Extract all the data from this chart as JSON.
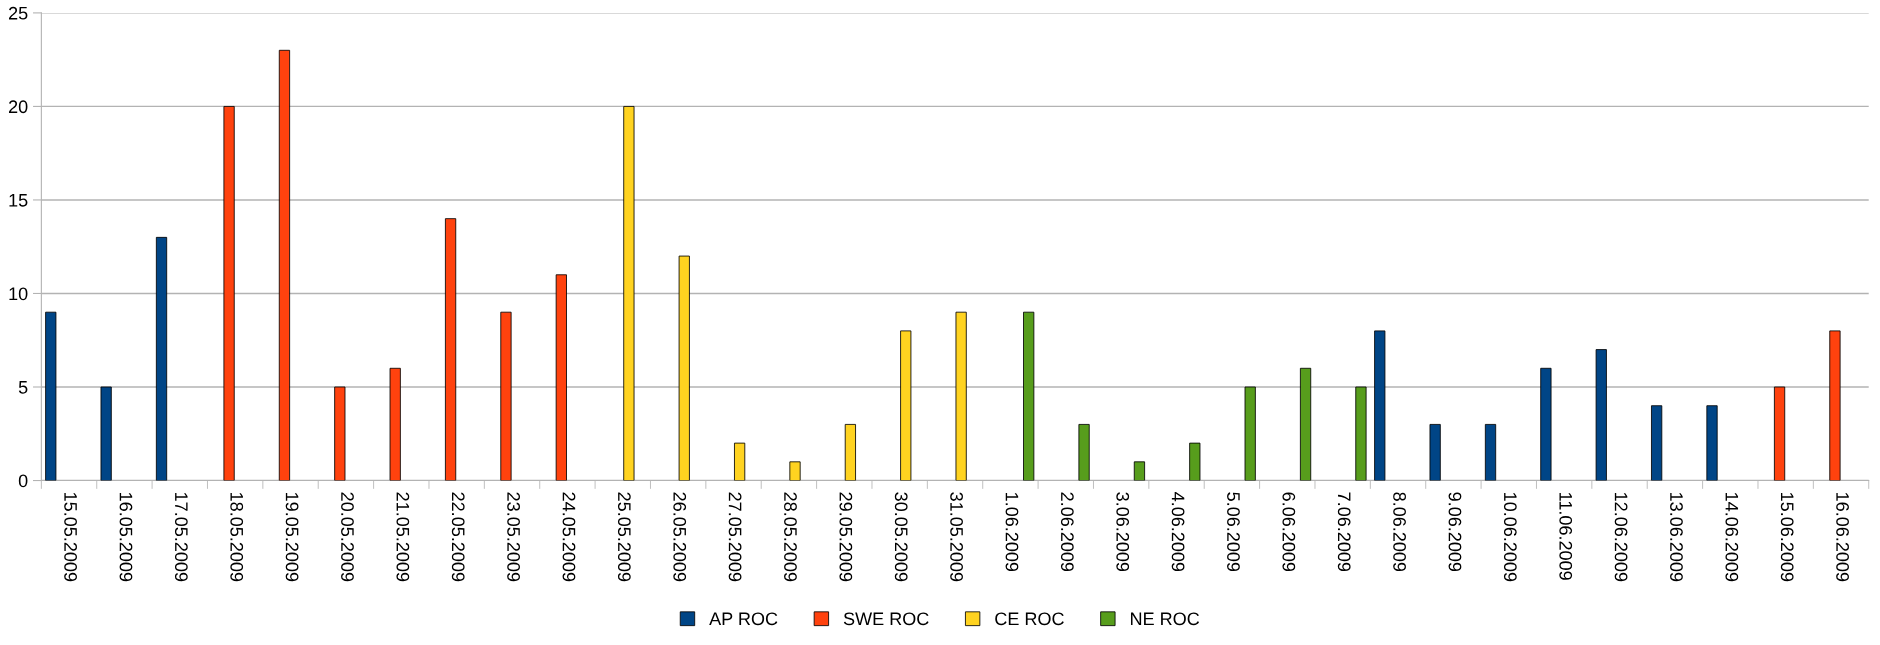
{
  "chart_data": {
    "type": "bar",
    "categories": [
      "15.05.2009",
      "16.05.2009",
      "17.05.2009",
      "18.05.2009",
      "19.05.2009",
      "20.05.2009",
      "21.05.2009",
      "22.05.2009",
      "23.05.2009",
      "24.05.2009",
      "25.05.2009",
      "26.05.2009",
      "27.05.2009",
      "28.05.2009",
      "29.05.2009",
      "30.05.2009",
      "31.05.2009",
      "1.06.2009",
      "2.06.2009",
      "3.06.2009",
      "4.06.2009",
      "5.06.2009",
      "6.06.2009",
      "7.06.2009",
      "8.06.2009",
      "9.06.2009",
      "10.06.2009",
      "11.06.2009",
      "12.06.2009",
      "13.06.2009",
      "14.06.2009",
      "15.06.2009",
      "16.06.2009"
    ],
    "series": [
      {
        "name": "AP ROC",
        "color": "#004586",
        "values": [
          9,
          5,
          13,
          null,
          null,
          null,
          null,
          null,
          null,
          null,
          null,
          null,
          null,
          null,
          null,
          null,
          null,
          null,
          null,
          null,
          null,
          null,
          null,
          null,
          8,
          3,
          3,
          6,
          7,
          4,
          4,
          null,
          null
        ]
      },
      {
        "name": "SWE ROC",
        "color": "#ff420e",
        "values": [
          null,
          null,
          null,
          20,
          23,
          5,
          6,
          14,
          9,
          11,
          null,
          null,
          null,
          null,
          null,
          null,
          null,
          null,
          null,
          null,
          null,
          null,
          null,
          null,
          null,
          null,
          null,
          null,
          null,
          null,
          null,
          5,
          8
        ]
      },
      {
        "name": "CE ROC",
        "color": "#ffd320",
        "values": [
          null,
          null,
          null,
          null,
          null,
          null,
          null,
          null,
          null,
          null,
          20,
          12,
          2,
          1,
          3,
          8,
          9,
          null,
          null,
          null,
          null,
          null,
          null,
          null,
          null,
          null,
          null,
          null,
          null,
          null,
          null,
          null,
          null
        ]
      },
      {
        "name": "NE ROC",
        "color": "#579d1c",
        "values": [
          null,
          null,
          null,
          null,
          null,
          null,
          null,
          null,
          null,
          null,
          null,
          null,
          null,
          null,
          null,
          null,
          null,
          9,
          3,
          1,
          2,
          5,
          6,
          5,
          null,
          null,
          null,
          null,
          null,
          null,
          null,
          null,
          null
        ]
      }
    ],
    "ylim": [
      0,
      25
    ],
    "yticks": [
      0,
      5,
      10,
      15,
      20,
      25
    ],
    "grid": "y",
    "legend": "bottom"
  }
}
